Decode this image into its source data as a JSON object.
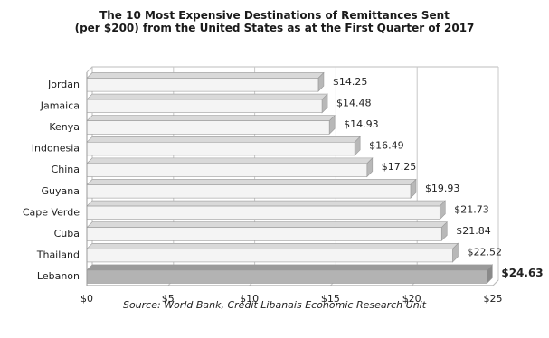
{
  "chart_data": {
    "type": "bar",
    "orientation": "horizontal",
    "title_line1": "The 10 Most Expensive Destinations of Remittances Sent",
    "title_line2": "(per $200) from the United States as at the First Quarter of 2017",
    "categories": [
      "Jordan",
      "Jamaica",
      "Kenya",
      "Indonesia",
      "China",
      "Guyana",
      "Cape Verde",
      "Cuba",
      "Thailand",
      "Lebanon"
    ],
    "values": [
      14.25,
      14.48,
      14.93,
      16.49,
      17.25,
      19.93,
      21.73,
      21.84,
      22.52,
      24.63
    ],
    "value_labels": [
      "$14.25",
      "$14.48",
      "$14.93",
      "$16.49",
      "$17.25",
      "$19.93",
      "$21.73",
      "$21.84",
      "$22.52",
      "$24.63"
    ],
    "highlight_category": "Lebanon",
    "xlim": [
      0,
      25
    ],
    "xticks": [
      0,
      5,
      10,
      15,
      20,
      25
    ],
    "xtick_labels": [
      "$0",
      "$5",
      "$10",
      "$15",
      "$20",
      "$25"
    ],
    "grid": "vertical gridlines on",
    "legend": "none",
    "colors": {
      "bar_fill": "#f4f4f4",
      "bar_edge": "#9a9a9a",
      "bar_top_face": "#d9d9d9",
      "bar_side_face": "#b8b8b8",
      "highlight_fill": "#b3b3b3",
      "highlight_top_face": "#9a9a9a",
      "highlight_side_face": "#8a8a8a"
    }
  },
  "source": "Source: World Bank, Credit Libanais Economic Research Unit"
}
